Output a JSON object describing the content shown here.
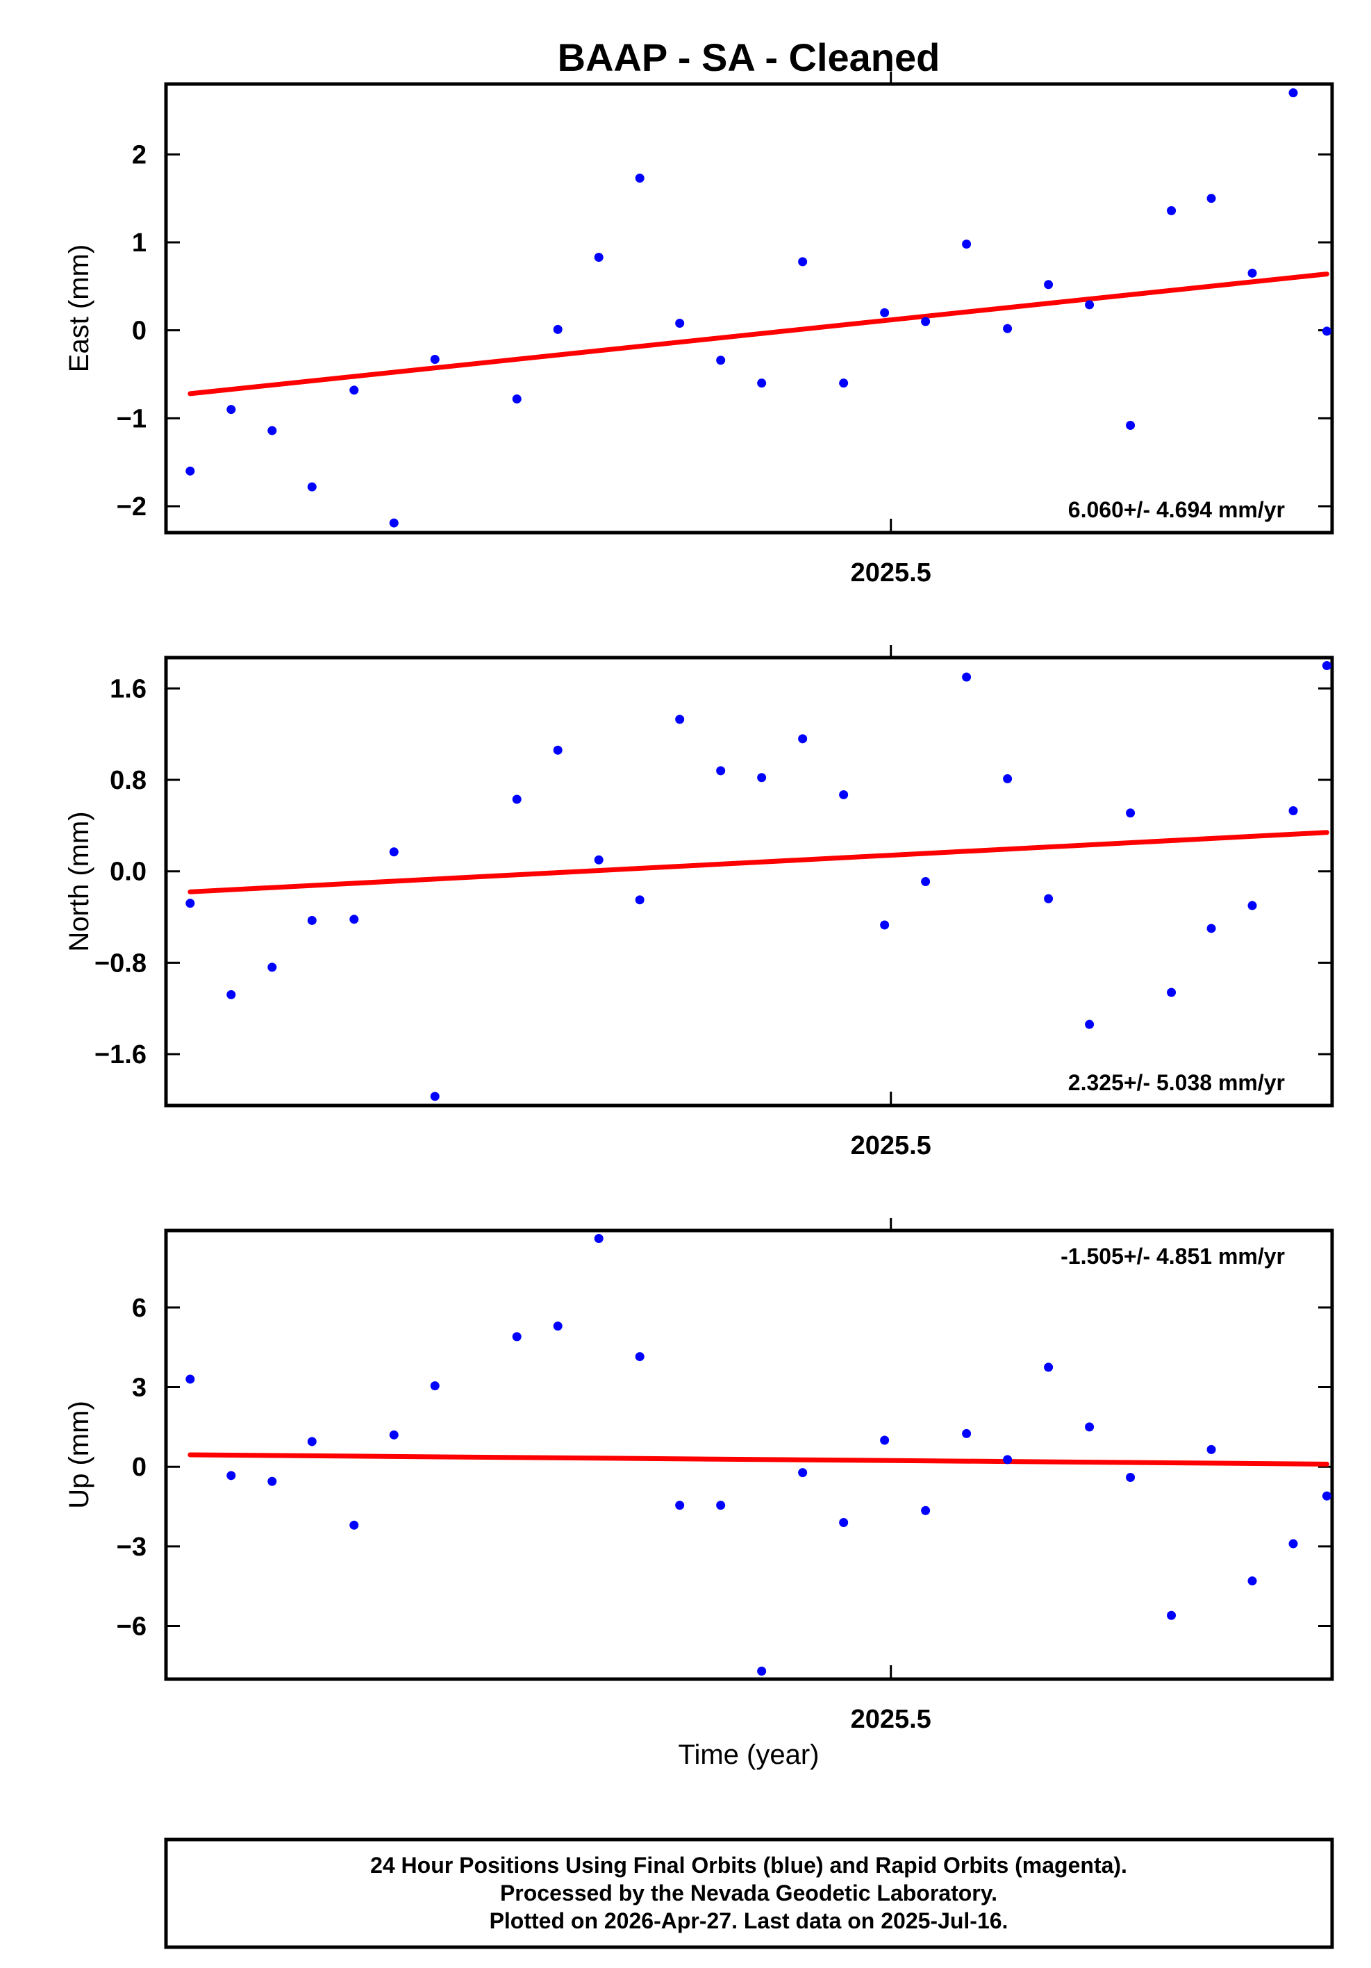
{
  "title": "BAAP  - SA - Cleaned",
  "x_axis_label": "Time (year)",
  "footer": {
    "lines": [
      "24 Hour Positions Using Final Orbits (blue) and Rapid Orbits (magenta).",
      "Processed by the Nevada Geodetic Laboratory.",
      "Plotted on 2026-Apr-27. Last data on 2025-Jul-16."
    ]
  },
  "colors": {
    "points": "#0000ff",
    "trend": "#ff0000",
    "frame": "#000000"
  },
  "chart_data": [
    {
      "type": "scatter",
      "ylabel": "East (mm)",
      "xlim": [
        2025.431,
        2025.542
      ],
      "ylim": [
        -2.3,
        2.8
      ],
      "yticks": [
        -2,
        -1,
        0,
        1,
        2
      ],
      "ytick_labels": [
        "−2",
        "−1",
        "0",
        "1",
        "2"
      ],
      "xticks": [
        2025.5
      ],
      "xtick_labels": [
        "2025.5"
      ],
      "rate_label": "6.060+/- 4.694 mm/yr",
      "rate_position": "bottom-right",
      "trend": {
        "x": [
          2025.4333,
          2025.5415
        ],
        "y": [
          -0.72,
          0.64
        ]
      },
      "points": [
        [
          2025.4333,
          -1.6
        ],
        [
          2025.4372,
          -0.9
        ],
        [
          2025.4411,
          -1.14
        ],
        [
          2025.4449,
          -1.78
        ],
        [
          2025.4489,
          -0.68
        ],
        [
          2025.4527,
          -2.19
        ],
        [
          2025.4566,
          -0.33
        ],
        [
          2025.4644,
          -0.78
        ],
        [
          2025.4683,
          0.01
        ],
        [
          2025.4722,
          0.83
        ],
        [
          2025.4761,
          1.73
        ],
        [
          2025.4799,
          0.08
        ],
        [
          2025.4838,
          -0.34
        ],
        [
          2025.4877,
          -0.6
        ],
        [
          2025.4916,
          0.78
        ],
        [
          2025.4955,
          -0.6
        ],
        [
          2025.4994,
          0.2
        ],
        [
          2025.5033,
          0.1
        ],
        [
          2025.5072,
          0.98
        ],
        [
          2025.5111,
          0.02
        ],
        [
          2025.515,
          0.52
        ],
        [
          2025.5189,
          0.29
        ],
        [
          2025.5228,
          -1.08
        ],
        [
          2025.5267,
          1.36
        ],
        [
          2025.5305,
          1.5
        ],
        [
          2025.5344,
          0.65
        ],
        [
          2025.5383,
          2.7
        ],
        [
          2025.5415,
          -0.01
        ]
      ]
    },
    {
      "type": "scatter",
      "ylabel": "North (mm)",
      "xlim": [
        2025.431,
        2025.542
      ],
      "ylim": [
        -2.05,
        1.87
      ],
      "yticks": [
        -1.6,
        -0.8,
        0.0,
        0.8,
        1.6
      ],
      "ytick_labels": [
        "−1.6",
        "−0.8",
        "0.0",
        "0.8",
        "1.6"
      ],
      "xticks": [
        2025.5
      ],
      "xtick_labels": [
        "2025.5"
      ],
      "rate_label": "2.325+/- 5.038 mm/yr",
      "rate_position": "bottom-right",
      "trend": {
        "x": [
          2025.4333,
          2025.5415
        ],
        "y": [
          -0.18,
          0.34
        ]
      },
      "points": [
        [
          2025.4333,
          -0.28
        ],
        [
          2025.4372,
          -1.08
        ],
        [
          2025.4411,
          -0.84
        ],
        [
          2025.4449,
          -0.43
        ],
        [
          2025.4489,
          -0.42
        ],
        [
          2025.4527,
          0.17
        ],
        [
          2025.4566,
          -1.97
        ],
        [
          2025.4644,
          0.63
        ],
        [
          2025.4683,
          1.06
        ],
        [
          2025.4722,
          0.1
        ],
        [
          2025.4761,
          -0.25
        ],
        [
          2025.4799,
          1.33
        ],
        [
          2025.4838,
          0.88
        ],
        [
          2025.4877,
          0.82
        ],
        [
          2025.4916,
          1.16
        ],
        [
          2025.4955,
          0.67
        ],
        [
          2025.4994,
          -0.47
        ],
        [
          2025.5033,
          -0.09
        ],
        [
          2025.5072,
          1.7
        ],
        [
          2025.5111,
          0.81
        ],
        [
          2025.515,
          -0.24
        ],
        [
          2025.5189,
          -1.34
        ],
        [
          2025.5228,
          0.51
        ],
        [
          2025.5267,
          -1.06
        ],
        [
          2025.5305,
          -0.5
        ],
        [
          2025.5344,
          -0.3
        ],
        [
          2025.5383,
          0.53
        ],
        [
          2025.5415,
          1.8
        ]
      ]
    },
    {
      "type": "scatter",
      "ylabel": "Up (mm)",
      "xlim": [
        2025.431,
        2025.542
      ],
      "ylim": [
        -8.0,
        8.9
      ],
      "yticks": [
        -6,
        -3,
        0,
        3,
        6
      ],
      "ytick_labels": [
        "−6",
        "−3",
        "0",
        "3",
        "6"
      ],
      "xticks": [
        2025.5
      ],
      "xtick_labels": [
        "2025.5"
      ],
      "rate_label": "-1.505+/- 4.851 mm/yr",
      "rate_position": "top-right",
      "trend": {
        "x": [
          2025.4333,
          2025.5415
        ],
        "y": [
          0.45,
          0.1
        ]
      },
      "points": [
        [
          2025.4333,
          3.3
        ],
        [
          2025.4372,
          -0.33
        ],
        [
          2025.4411,
          -0.55
        ],
        [
          2025.4449,
          0.95
        ],
        [
          2025.4489,
          -2.2
        ],
        [
          2025.4527,
          1.2
        ],
        [
          2025.4566,
          3.05
        ],
        [
          2025.4644,
          4.9
        ],
        [
          2025.4683,
          5.3
        ],
        [
          2025.4722,
          8.6
        ],
        [
          2025.4761,
          4.15
        ],
        [
          2025.4799,
          -1.45
        ],
        [
          2025.4838,
          -1.45
        ],
        [
          2025.4877,
          -7.7
        ],
        [
          2025.4916,
          -0.22
        ],
        [
          2025.4955,
          -2.1
        ],
        [
          2025.4994,
          1.0
        ],
        [
          2025.5033,
          -1.65
        ],
        [
          2025.5072,
          1.25
        ],
        [
          2025.5111,
          0.27
        ],
        [
          2025.515,
          3.75
        ],
        [
          2025.5189,
          1.5
        ],
        [
          2025.5228,
          -0.4
        ],
        [
          2025.5267,
          -5.6
        ],
        [
          2025.5305,
          0.65
        ],
        [
          2025.5344,
          -4.3
        ],
        [
          2025.5383,
          -2.9
        ],
        [
          2025.5415,
          -1.1
        ]
      ]
    }
  ]
}
